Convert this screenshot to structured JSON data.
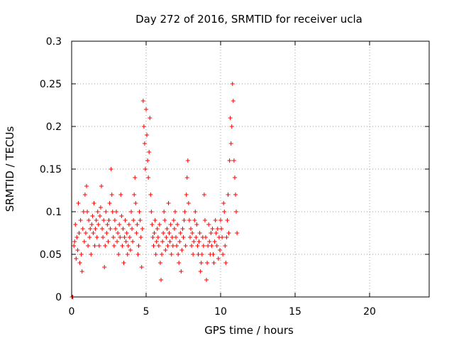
{
  "chart_data": {
    "type": "scatter",
    "title": "Day 272 of 2016, SRMTID for receiver ucla",
    "xlabel": "GPS time / hours",
    "ylabel": "SRMTID / TECUs",
    "xlim": [
      0,
      24
    ],
    "ylim": [
      0,
      0.3
    ],
    "x_ticks": [
      0,
      5,
      10,
      15,
      20
    ],
    "x_tick_labels": [
      "0",
      "5",
      "10",
      "15",
      "20"
    ],
    "y_ticks": [
      0,
      0.05,
      0.1,
      0.15,
      0.2,
      0.25,
      0.3
    ],
    "y_tick_labels": [
      "0",
      "0.05",
      "0.1",
      "0.15",
      "0.2",
      "0.25",
      "0.3"
    ],
    "grid": true,
    "marker": "+",
    "marker_color": "#ff0000",
    "series": [
      {
        "name": "SRMTID",
        "points": [
          [
            0.02,
            0.0
          ],
          [
            0.05,
            0.0
          ],
          [
            0.08,
            0.0
          ],
          [
            0.15,
            0.06
          ],
          [
            0.2,
            0.065
          ],
          [
            0.25,
            0.085
          ],
          [
            0.3,
            0.045
          ],
          [
            0.35,
            0.07
          ],
          [
            0.4,
            0.055
          ],
          [
            0.45,
            0.11
          ],
          [
            0.5,
            0.075
          ],
          [
            0.55,
            0.04
          ],
          [
            0.6,
            0.09
          ],
          [
            0.65,
            0.05
          ],
          [
            0.7,
            0.03
          ],
          [
            0.75,
            0.08
          ],
          [
            0.8,
            0.1
          ],
          [
            0.85,
            0.065
          ],
          [
            0.9,
            0.12
          ],
          [
            0.95,
            0.075
          ],
          [
            1.0,
            0.13
          ],
          [
            1.05,
            0.1
          ],
          [
            1.1,
            0.06
          ],
          [
            1.15,
            0.09
          ],
          [
            1.2,
            0.07
          ],
          [
            1.25,
            0.08
          ],
          [
            1.3,
            0.05
          ],
          [
            1.35,
            0.085
          ],
          [
            1.4,
            0.095
          ],
          [
            1.45,
            0.075
          ],
          [
            1.5,
            0.11
          ],
          [
            1.55,
            0.06
          ],
          [
            1.6,
            0.08
          ],
          [
            1.65,
            0.09
          ],
          [
            1.7,
            0.07
          ],
          [
            1.75,
            0.1
          ],
          [
            1.8,
            0.085
          ],
          [
            1.85,
            0.06
          ],
          [
            1.9,
            0.095
          ],
          [
            1.95,
            0.105
          ],
          [
            2.0,
            0.13
          ],
          [
            2.05,
            0.08
          ],
          [
            2.1,
            0.07
          ],
          [
            2.15,
            0.09
          ],
          [
            2.2,
            0.035
          ],
          [
            2.25,
            0.06
          ],
          [
            2.3,
            0.1
          ],
          [
            2.35,
            0.075
          ],
          [
            2.4,
            0.085
          ],
          [
            2.45,
            0.065
          ],
          [
            2.5,
            0.09
          ],
          [
            2.55,
            0.11
          ],
          [
            2.6,
            0.08
          ],
          [
            2.65,
            0.15
          ],
          [
            2.7,
            0.12
          ],
          [
            2.75,
            0.1
          ],
          [
            2.8,
            0.07
          ],
          [
            2.85,
            0.06
          ],
          [
            2.9,
            0.09
          ],
          [
            2.95,
            0.08
          ],
          [
            3.0,
            0.1
          ],
          [
            3.05,
            0.065
          ],
          [
            3.1,
            0.075
          ],
          [
            3.15,
            0.05
          ],
          [
            3.2,
            0.085
          ],
          [
            3.25,
            0.07
          ],
          [
            3.3,
            0.12
          ],
          [
            3.35,
            0.095
          ],
          [
            3.4,
            0.06
          ],
          [
            3.45,
            0.08
          ],
          [
            3.5,
            0.04
          ],
          [
            3.55,
            0.07
          ],
          [
            3.6,
            0.09
          ],
          [
            3.65,
            0.065
          ],
          [
            3.7,
            0.075
          ],
          [
            3.75,
            0.05
          ],
          [
            3.8,
            0.06
          ],
          [
            3.85,
            0.085
          ],
          [
            3.9,
            0.07
          ],
          [
            3.95,
            0.055
          ],
          [
            4.0,
            0.1
          ],
          [
            4.05,
            0.08
          ],
          [
            4.1,
            0.065
          ],
          [
            4.15,
            0.09
          ],
          [
            4.2,
            0.12
          ],
          [
            4.25,
            0.14
          ],
          [
            4.3,
            0.11
          ],
          [
            4.35,
            0.075
          ],
          [
            4.4,
            0.085
          ],
          [
            4.45,
            0.05
          ],
          [
            4.5,
            0.06
          ],
          [
            4.55,
            0.1
          ],
          [
            4.6,
            0.09
          ],
          [
            4.65,
            0.07
          ],
          [
            4.7,
            0.035
          ],
          [
            4.75,
            0.08
          ],
          [
            4.8,
            0.23
          ],
          [
            4.85,
            0.2
          ],
          [
            4.9,
            0.18
          ],
          [
            4.95,
            0.15
          ],
          [
            5.0,
            0.22
          ],
          [
            5.05,
            0.19
          ],
          [
            5.1,
            0.16
          ],
          [
            5.15,
            0.14
          ],
          [
            5.2,
            0.17
          ],
          [
            5.25,
            0.21
          ],
          [
            5.3,
            0.12
          ],
          [
            5.35,
            0.1
          ],
          [
            5.4,
            0.085
          ],
          [
            5.45,
            0.07
          ],
          [
            5.5,
            0.06
          ],
          [
            5.55,
            0.075
          ],
          [
            5.6,
            0.09
          ],
          [
            5.65,
            0.05
          ],
          [
            5.7,
            0.065
          ],
          [
            5.75,
            0.08
          ],
          [
            5.8,
            0.07
          ],
          [
            5.85,
            0.06
          ],
          [
            5.9,
            0.085
          ],
          [
            5.95,
            0.04
          ],
          [
            6.0,
            0.02
          ],
          [
            6.05,
            0.05
          ],
          [
            6.1,
            0.065
          ],
          [
            6.15,
            0.075
          ],
          [
            6.2,
            0.1
          ],
          [
            6.25,
            0.09
          ],
          [
            6.3,
            0.055
          ],
          [
            6.35,
            0.07
          ],
          [
            6.4,
            0.08
          ],
          [
            6.45,
            0.06
          ],
          [
            6.5,
            0.11
          ],
          [
            6.55,
            0.075
          ],
          [
            6.6,
            0.065
          ],
          [
            6.65,
            0.085
          ],
          [
            6.7,
            0.05
          ],
          [
            6.75,
            0.07
          ],
          [
            6.8,
            0.06
          ],
          [
            6.85,
            0.09
          ],
          [
            6.9,
            0.08
          ],
          [
            6.95,
            0.1
          ],
          [
            7.0,
            0.07
          ],
          [
            7.05,
            0.06
          ],
          [
            7.1,
            0.085
          ],
          [
            7.15,
            0.05
          ],
          [
            7.2,
            0.04
          ],
          [
            7.25,
            0.065
          ],
          [
            7.3,
            0.075
          ],
          [
            7.35,
            0.03
          ],
          [
            7.4,
            0.055
          ],
          [
            7.45,
            0.08
          ],
          [
            7.5,
            0.07
          ],
          [
            7.55,
            0.09
          ],
          [
            7.6,
            0.1
          ],
          [
            7.65,
            0.06
          ],
          [
            7.7,
            0.12
          ],
          [
            7.75,
            0.14
          ],
          [
            7.8,
            0.16
          ],
          [
            7.85,
            0.11
          ],
          [
            7.9,
            0.09
          ],
          [
            7.95,
            0.07
          ],
          [
            8.0,
            0.08
          ],
          [
            8.05,
            0.06
          ],
          [
            8.1,
            0.075
          ],
          [
            8.15,
            0.05
          ],
          [
            8.2,
            0.065
          ],
          [
            8.25,
            0.09
          ],
          [
            8.3,
            0.1
          ],
          [
            8.35,
            0.07
          ],
          [
            8.4,
            0.085
          ],
          [
            8.45,
            0.06
          ],
          [
            8.5,
            0.05
          ],
          [
            8.55,
            0.065
          ],
          [
            8.6,
            0.075
          ],
          [
            8.65,
            0.03
          ],
          [
            8.7,
            0.04
          ],
          [
            8.75,
            0.05
          ],
          [
            8.8,
            0.07
          ],
          [
            8.85,
            0.06
          ],
          [
            8.9,
            0.12
          ],
          [
            8.95,
            0.09
          ],
          [
            9.0,
            0.07
          ],
          [
            9.05,
            0.02
          ],
          [
            9.1,
            0.04
          ],
          [
            9.15,
            0.06
          ],
          [
            9.2,
            0.085
          ],
          [
            9.25,
            0.065
          ],
          [
            9.3,
            0.05
          ],
          [
            9.35,
            0.075
          ],
          [
            9.4,
            0.06
          ],
          [
            9.45,
            0.08
          ],
          [
            9.5,
            0.05
          ],
          [
            9.55,
            0.04
          ],
          [
            9.6,
            0.065
          ],
          [
            9.65,
            0.09
          ],
          [
            9.7,
            0.075
          ],
          [
            9.75,
            0.06
          ],
          [
            9.8,
            0.08
          ],
          [
            9.85,
            0.045
          ],
          [
            9.9,
            0.07
          ],
          [
            9.95,
            0.055
          ],
          [
            10.0,
            0.09
          ],
          [
            10.05,
            0.08
          ],
          [
            10.1,
            0.07
          ],
          [
            10.15,
            0.05
          ],
          [
            10.2,
            0.11
          ],
          [
            10.25,
            0.1
          ],
          [
            10.3,
            0.06
          ],
          [
            10.35,
            0.04
          ],
          [
            10.4,
            0.07
          ],
          [
            10.45,
            0.09
          ],
          [
            10.5,
            0.12
          ],
          [
            10.55,
            0.075
          ],
          [
            10.6,
            0.16
          ],
          [
            10.65,
            0.21
          ],
          [
            10.7,
            0.18
          ],
          [
            10.75,
            0.2
          ],
          [
            10.8,
            0.25
          ],
          [
            10.85,
            0.23
          ],
          [
            10.9,
            0.16
          ],
          [
            10.95,
            0.14
          ],
          [
            11.0,
            0.12
          ],
          [
            11.05,
            0.1
          ],
          [
            11.1,
            0.075
          ]
        ]
      }
    ]
  }
}
